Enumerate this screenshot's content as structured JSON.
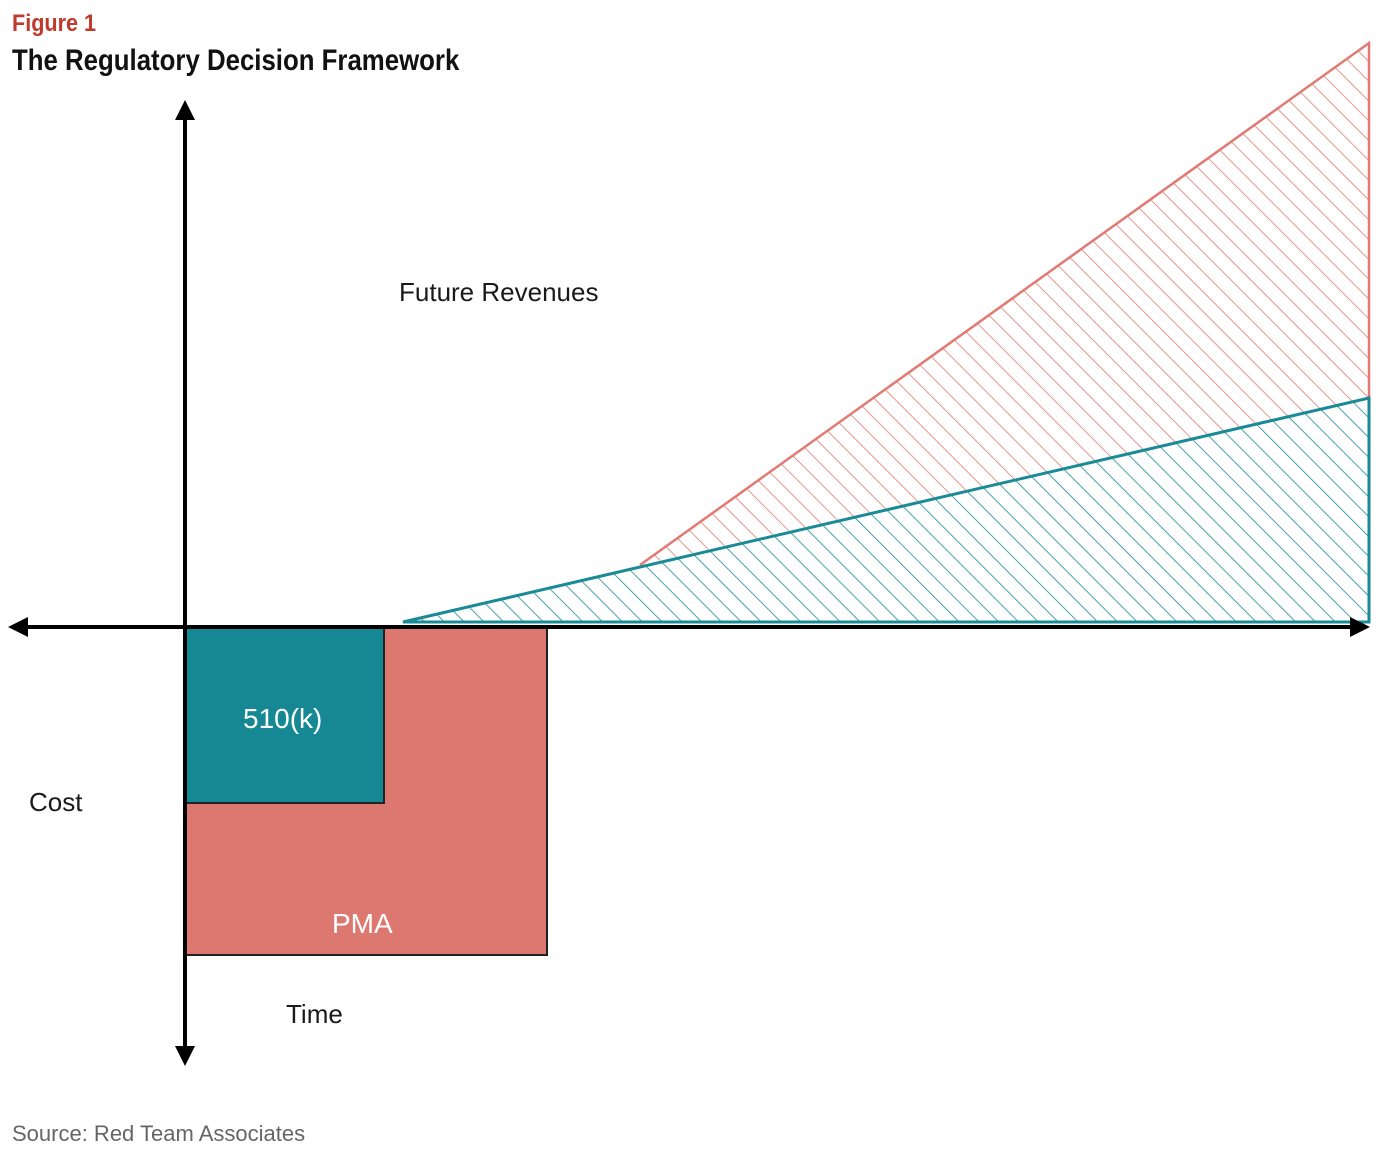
{
  "figure_label": "Figure 1",
  "title": "The Regulatory Decision Framework",
  "labels": {
    "future_revenues": "Future Revenues",
    "cost": "Cost",
    "time": "Time"
  },
  "boxes": {
    "k510": "510(k)",
    "pma": "PMA"
  },
  "source": "Source: Red Team Associates",
  "colors": {
    "pma": "#dc7870",
    "k510": "#168893",
    "pma_line": "#e07a72",
    "k510_line": "#1a8b96",
    "axis": "#000000",
    "figure_label": "#c0392b"
  }
}
